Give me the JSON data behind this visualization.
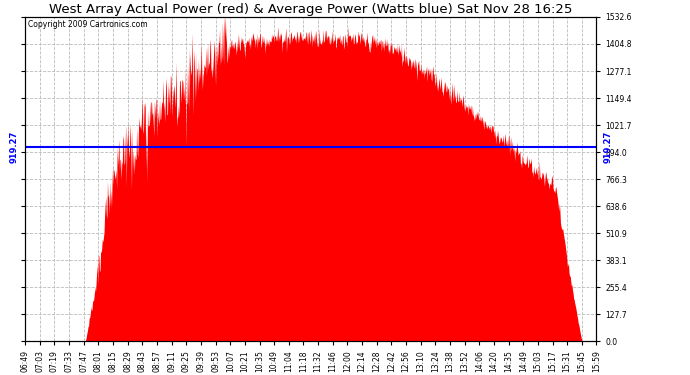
{
  "title": "West Array Actual Power (red) & Average Power (Watts blue) Sat Nov 28 16:25",
  "copyright": "Copyright 2009 Cartronics.com",
  "ymin": 0.0,
  "ymax": 1532.6,
  "yticks": [
    0.0,
    127.7,
    255.4,
    383.1,
    510.9,
    638.6,
    766.3,
    894.0,
    1021.7,
    1149.4,
    1277.1,
    1404.8,
    1532.6
  ],
  "avg_power": 919.27,
  "avg_label": "919.27",
  "bg_color": "#ffffff",
  "fill_color": "#ff0000",
  "line_color": "#0000ff",
  "grid_color": "#bbbbbb",
  "xtick_labels": [
    "06:49",
    "07:03",
    "07:19",
    "07:33",
    "07:47",
    "08:01",
    "08:15",
    "08:29",
    "08:43",
    "08:57",
    "09:11",
    "09:25",
    "09:39",
    "09:53",
    "10:07",
    "10:21",
    "10:35",
    "10:49",
    "11:04",
    "11:18",
    "11:32",
    "11:46",
    "12:00",
    "12:14",
    "12:28",
    "12:42",
    "12:56",
    "13:10",
    "13:24",
    "13:38",
    "13:52",
    "14:06",
    "14:20",
    "14:35",
    "14:49",
    "15:03",
    "15:17",
    "15:31",
    "15:45",
    "15:59"
  ],
  "title_fontsize": 9.5,
  "tick_fontsize": 5.5,
  "copyright_fontsize": 5.5,
  "avg_label_fontsize": 6.0
}
